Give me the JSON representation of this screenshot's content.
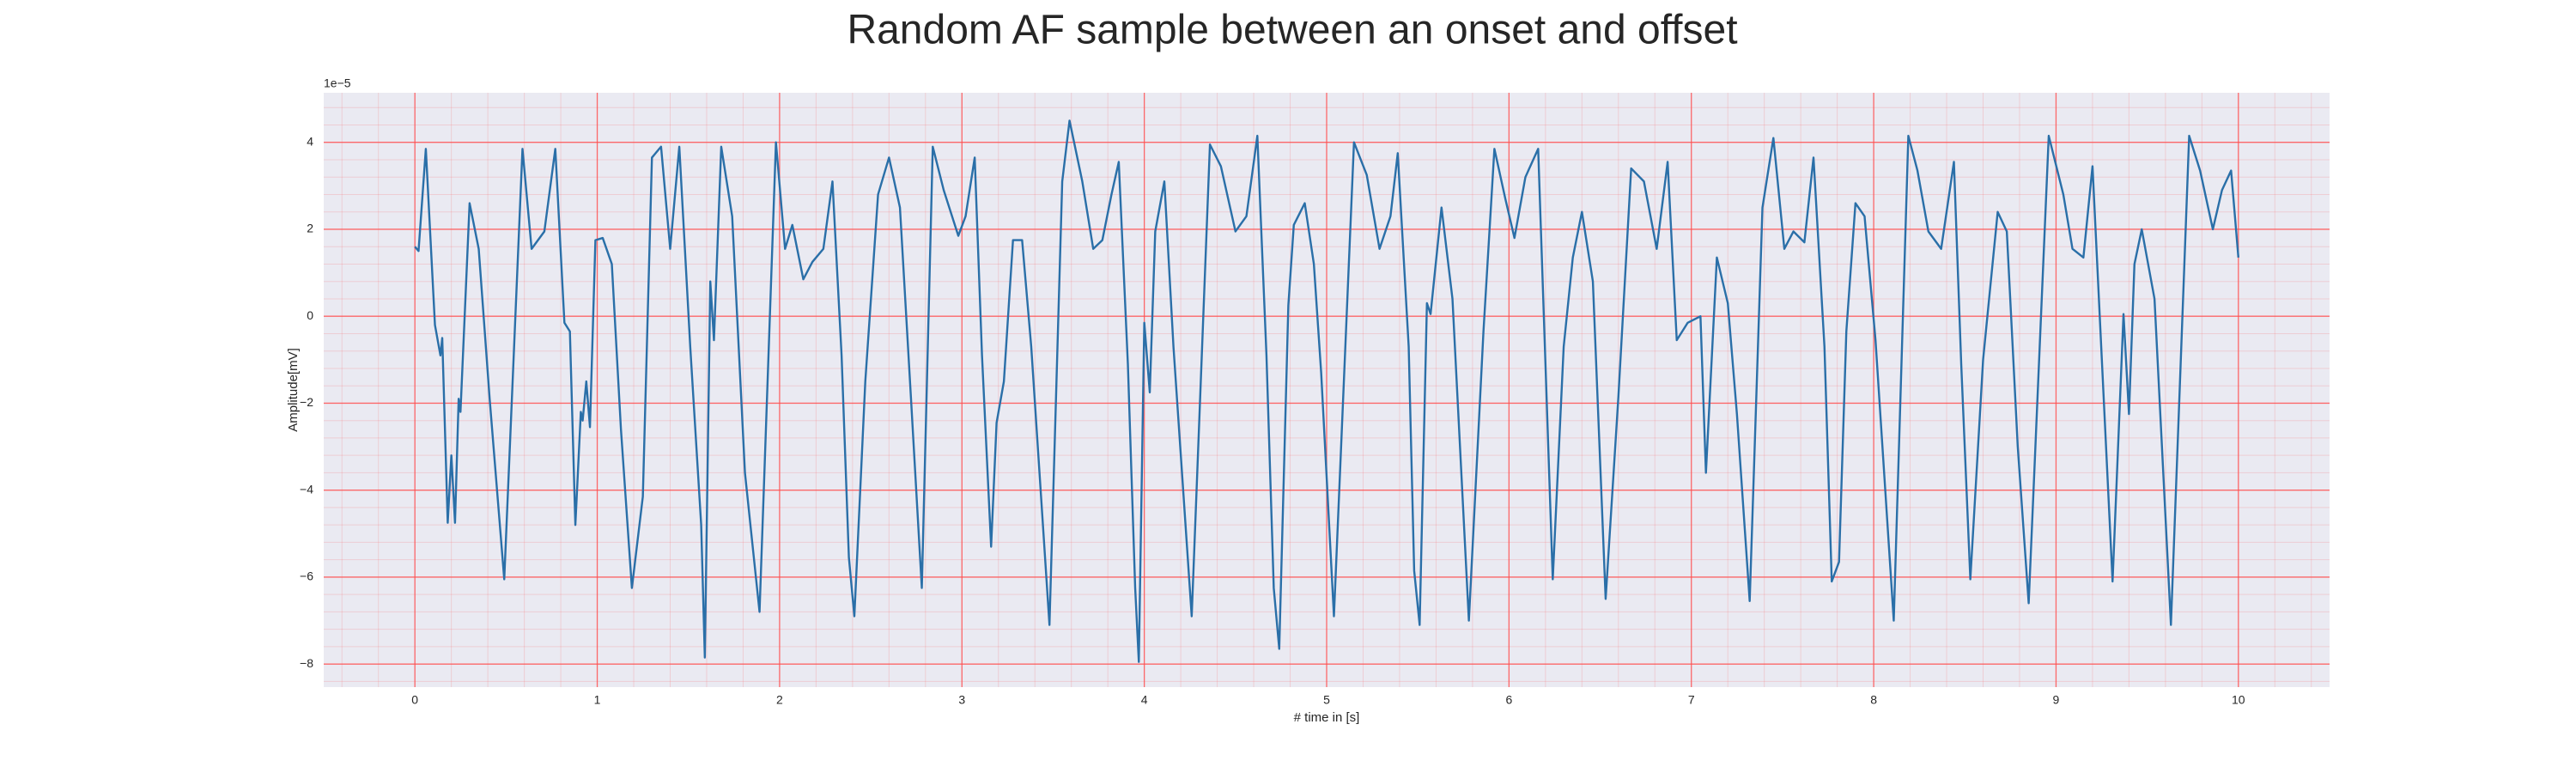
{
  "chart_data": {
    "type": "line",
    "title": "Random AF sample between an onset and offset",
    "xlabel": "# time in [s]",
    "ylabel": "Amplitude[mV]",
    "offset_label": "1e−5",
    "grid": true,
    "minor_grid": true,
    "grid_color": "#ff4d4d",
    "background": "#eaeaf2",
    "xlim": [
      -0.5,
      10.5
    ],
    "ylim": [
      -8.53,
      5.14
    ],
    "xticks": [
      0,
      1,
      2,
      3,
      4,
      5,
      6,
      7,
      8,
      9,
      10
    ],
    "yticks": [
      {
        "value": -8,
        "label": "−8"
      },
      {
        "value": -6,
        "label": "−6"
      },
      {
        "value": -4,
        "label": "−4"
      },
      {
        "value": -2,
        "label": "−2"
      },
      0,
      2,
      4
    ],
    "x": [
      0,
      0.02,
      0.06,
      0.11,
      0.14,
      0.15,
      0.18,
      0.2,
      0.22,
      0.24,
      0.25,
      0.3,
      0.35,
      0.41,
      0.49,
      0.59,
      0.64,
      0.71,
      0.77,
      0.82,
      0.85,
      0.88,
      0.91,
      0.92,
      0.94,
      0.96,
      0.99,
      1.03,
      1.08,
      1.13,
      1.19,
      1.25,
      1.3,
      1.35,
      1.4,
      1.45,
      1.51,
      1.57,
      1.59,
      1.62,
      1.64,
      1.68,
      1.74,
      1.81,
      1.89,
      1.98,
      2.03,
      2.07,
      2.13,
      2.18,
      2.24,
      2.29,
      2.34,
      2.38,
      2.41,
      2.47,
      2.54,
      2.6,
      2.66,
      2.72,
      2.78,
      2.84,
      2.9,
      2.98,
      3.02,
      3.07,
      3.11,
      3.16,
      3.19,
      3.23,
      3.28,
      3.33,
      3.38,
      3.48,
      3.55,
      3.59,
      3.66,
      3.72,
      3.77,
      3.82,
      3.86,
      3.91,
      3.95,
      3.97,
      4.0,
      4.03,
      4.06,
      4.11,
      4.16,
      4.26,
      4.36,
      4.42,
      4.5,
      4.56,
      4.62,
      4.67,
      4.71,
      4.74,
      4.79,
      4.82,
      4.88,
      4.93,
      4.97,
      5.04,
      5.15,
      5.22,
      5.29,
      5.35,
      5.39,
      5.45,
      5.48,
      5.51,
      5.55,
      5.57,
      5.63,
      5.69,
      5.78,
      5.86,
      5.92,
      5.98,
      6.03,
      6.09,
      6.16,
      6.2,
      6.24,
      6.3,
      6.35,
      6.4,
      6.46,
      6.53,
      6.6,
      6.67,
      6.74,
      6.81,
      6.87,
      6.92,
      6.98,
      7.05,
      7.08,
      7.14,
      7.2,
      7.25,
      7.32,
      7.39,
      7.45,
      7.51,
      7.56,
      7.62,
      7.67,
      7.73,
      7.77,
      7.81,
      7.85,
      7.9,
      7.95,
      8.01,
      8.11,
      8.19,
      8.24,
      8.3,
      8.37,
      8.44,
      8.48,
      8.53,
      8.6,
      8.68,
      8.73,
      8.79,
      8.85,
      8.96,
      9.04,
      9.09,
      9.15,
      9.2,
      9.25,
      9.31,
      9.37,
      9.4,
      9.43,
      9.47,
      9.54,
      9.63,
      9.73,
      9.79,
      9.86,
      9.91,
      9.96,
      10.0
    ],
    "series": [
      {
        "color": "#2a6fa8",
        "values": [
          1.6,
          1.5,
          3.85,
          -0.2,
          -0.9,
          -0.5,
          -4.75,
          -3.2,
          -4.75,
          -1.9,
          -2.2,
          2.6,
          1.55,
          -1.9,
          -6.05,
          3.85,
          1.55,
          1.95,
          3.85,
          -0.15,
          -0.35,
          -4.8,
          -2.2,
          -2.4,
          -1.5,
          -2.55,
          1.75,
          1.8,
          1.2,
          -2.6,
          -6.25,
          -4.15,
          3.65,
          3.9,
          1.55,
          3.9,
          -0.7,
          -4.8,
          -7.85,
          0.8,
          -0.55,
          3.9,
          2.3,
          -3.6,
          -6.8,
          4.0,
          1.55,
          2.1,
          0.85,
          1.25,
          1.55,
          3.1,
          -0.9,
          -5.55,
          -6.9,
          -1.5,
          2.8,
          3.65,
          2.5,
          -1.85,
          -6.25,
          3.9,
          2.9,
          1.85,
          2.3,
          3.65,
          -0.9,
          -5.3,
          -2.45,
          -1.5,
          1.75,
          1.75,
          -0.7,
          -7.1,
          3.1,
          4.5,
          3.1,
          1.55,
          1.75,
          2.8,
          3.55,
          -1.1,
          -6.25,
          -7.95,
          -0.15,
          -1.75,
          1.95,
          3.1,
          -0.7,
          -6.9,
          3.95,
          3.45,
          1.95,
          2.3,
          4.15,
          -0.9,
          -6.25,
          -7.65,
          0.25,
          2.1,
          2.6,
          1.2,
          -1.3,
          -6.9,
          4.0,
          3.25,
          1.55,
          2.3,
          3.75,
          -0.7,
          -5.85,
          -7.1,
          0.3,
          0.05,
          2.5,
          0.4,
          -7.0,
          -0.35,
          3.85,
          2.7,
          1.8,
          3.2,
          3.85,
          -1.1,
          -6.05,
          -0.7,
          1.35,
          2.4,
          0.8,
          -6.5,
          -1.85,
          3.4,
          3.1,
          1.55,
          3.55,
          -0.55,
          -0.15,
          0,
          -3.6,
          1.35,
          0.3,
          -2.25,
          -6.55,
          2.5,
          4.1,
          1.55,
          1.95,
          1.7,
          3.65,
          -0.7,
          -6.1,
          -5.65,
          -0.35,
          2.6,
          2.3,
          -0.55,
          -7.0,
          4.15,
          3.35,
          1.95,
          1.55,
          3.55,
          -1.1,
          -6.05,
          -1.0,
          2.4,
          1.95,
          -3.0,
          -6.6,
          4.15,
          2.8,
          1.55,
          1.35,
          3.45,
          -0.9,
          -6.1,
          0.05,
          -2.25,
          1.2,
          2.0,
          0.4,
          -7.1,
          4.15,
          3.35,
          2.0,
          2.9,
          3.35,
          1.35
        ]
      }
    ]
  }
}
